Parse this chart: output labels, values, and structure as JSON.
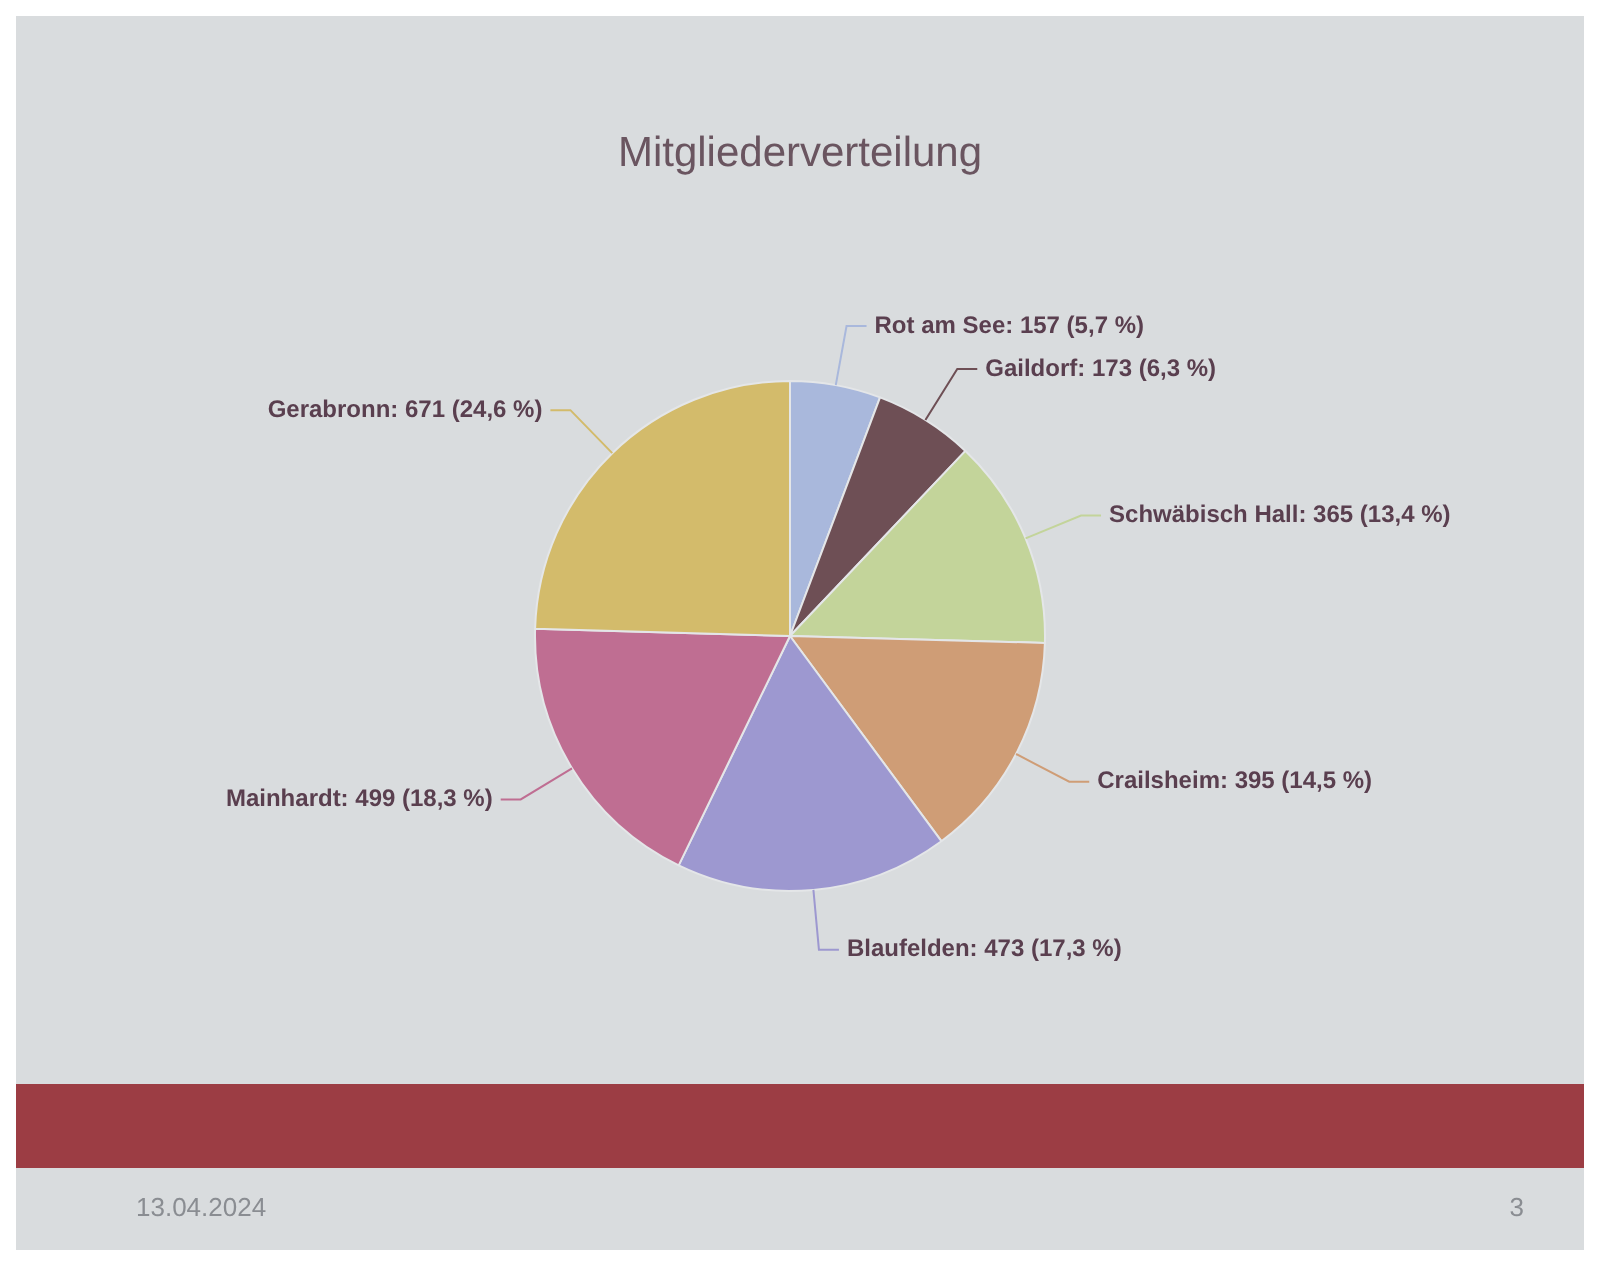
{
  "chart_data": {
    "type": "pie",
    "title": "Mitgliederverteilung",
    "categories": [
      "Rot am See",
      "Gaildorf",
      "Schwäbisch Hall",
      "Crailsheim",
      "Blaufelden",
      "Mainhardt",
      "Gerabronn"
    ],
    "values": [
      157,
      173,
      365,
      395,
      473,
      499,
      671
    ],
    "colors": [
      "#a9b8dc",
      "#6e4f55",
      "#c3d49a",
      "#cf9d76",
      "#9d98d0",
      "#bf6e92",
      "#d3bb6b"
    ],
    "value_labels": [
      "157 (5,7 %)",
      "173 (6,3 %)",
      "365 (13,4 %)",
      "395 (14,5 %)",
      "473 (17,3 %)",
      "499 (18,3 %)",
      "671 (24,6 %)"
    ],
    "annotations": [
      "13.04.2024",
      "3"
    ]
  }
}
